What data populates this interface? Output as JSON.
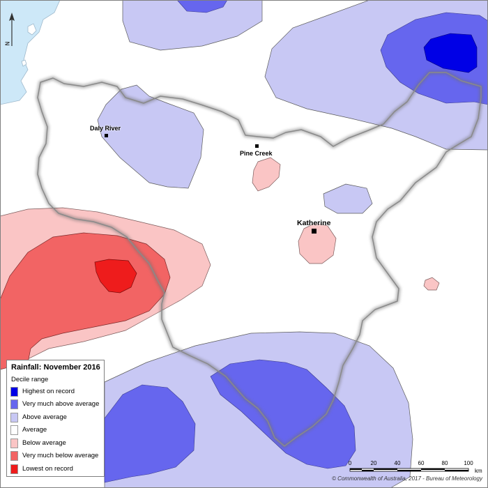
{
  "legend": {
    "title": "Rainfall: November 2016",
    "subtitle": "Decile range",
    "items": [
      {
        "label": "Highest on record",
        "color": "#0000e6"
      },
      {
        "label": "Very much above average",
        "color": "#6666ee"
      },
      {
        "label": "Above average",
        "color": "#c8c8f4"
      },
      {
        "label": "Average",
        "color": "#ffffff"
      },
      {
        "label": "Below average",
        "color": "#fac5c5"
      },
      {
        "label": "Very much below average",
        "color": "#f26464"
      },
      {
        "label": "Lowest on record",
        "color": "#ee1c1c"
      }
    ]
  },
  "towns": {
    "daly_river": "Daly River",
    "pine_creek": "Pine Creek",
    "katherine": "Katherine"
  },
  "north_arrow": {
    "label": "N",
    "icon": "north-arrow-icon"
  },
  "scale": {
    "ticks": [
      "0",
      "20",
      "40",
      "60",
      "80",
      "100"
    ],
    "unit": "km"
  },
  "copyright": "© Commonwealth of Australia, 2017 - Bureau of Meteorology",
  "colors": {
    "sea": "#cde8f8",
    "boundary": "#8a8a8a"
  }
}
